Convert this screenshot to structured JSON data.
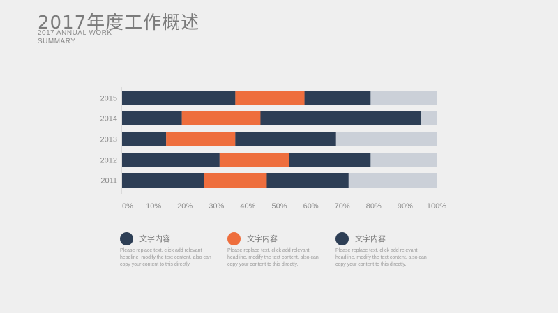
{
  "header": {
    "title": "2017年度工作概述",
    "subtitle": "2017 ANNUAL WORK SUMMARY"
  },
  "colors": {
    "navy": "#2d3e55",
    "orange": "#ee6e3d",
    "track": "#cbd0d8",
    "axis_text": "#8a8a8a"
  },
  "chart_data": {
    "type": "bar",
    "orientation": "horizontal",
    "stacked": true,
    "categories": [
      "2015",
      "2014",
      "2013",
      "2012",
      "2011"
    ],
    "series": [
      {
        "color": "#2d3e55",
        "values": [
          36,
          19,
          14,
          31,
          26
        ]
      },
      {
        "color": "#ee6e3d",
        "values": [
          22,
          25,
          22,
          22,
          20
        ]
      },
      {
        "color": "#2d3e55",
        "values": [
          21,
          51,
          32,
          26,
          26
        ]
      }
    ],
    "background_track_to": 100,
    "xlim": [
      0,
      100
    ],
    "xticks": [
      "0%",
      "10%",
      "20%",
      "30%",
      "40%",
      "50%",
      "60%",
      "70%",
      "80%",
      "90%",
      "100%"
    ],
    "grid": false,
    "legend": "bottom"
  },
  "legend": [
    {
      "color": "#2d3e55",
      "label": "文字内容",
      "desc": "Please replace text, click add relevant headline, modify the text content, also can copy your content to this directly."
    },
    {
      "color": "#ee6e3d",
      "label": "文字内容",
      "desc": "Please replace text, click add relevant headline, modify the text content, also can copy your content to this directly."
    },
    {
      "color": "#2d3e55",
      "label": "文字内容",
      "desc": "Please replace text, click add relevant headline, modify the text content, also can copy your content to this directly."
    }
  ]
}
